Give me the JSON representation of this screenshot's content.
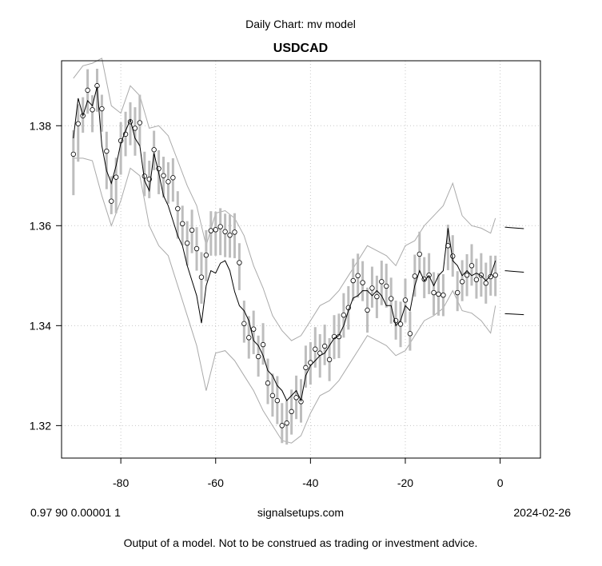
{
  "chart_data": {
    "type": "line",
    "title": "USDCAD",
    "subtitle": "Daily Chart: mv model",
    "xlabel": "",
    "ylabel": "",
    "xlim": [
      -92.5,
      8.5
    ],
    "ylim": [
      1.3135,
      1.393
    ],
    "x_ticks": [
      -80,
      -60,
      -40,
      -20,
      0
    ],
    "x_tick_labels": [
      "-80",
      "-60",
      "-40",
      "-20",
      "0"
    ],
    "y_ticks": [
      1.32,
      1.34,
      1.36,
      1.38
    ],
    "y_tick_labels": [
      "1.32",
      "1.34",
      "1.36",
      "1.38"
    ],
    "grid": true,
    "series": [
      {
        "type": "candles",
        "x": [
          -90,
          -89,
          -88,
          -87,
          -86,
          -85,
          -84,
          -83,
          -82,
          -81,
          -80,
          -79,
          -78,
          -77,
          -76,
          -75,
          -74,
          -73,
          -72,
          -71,
          -70,
          -69,
          -68,
          -67,
          -66,
          -65,
          -64,
          -63,
          -62,
          -61,
          -60,
          -59,
          -58,
          -57,
          -56,
          -55,
          -54,
          -53,
          -52,
          -51,
          -50,
          -49,
          -48,
          -47,
          -46,
          -45,
          -44,
          -43,
          -42,
          -41,
          -40,
          -39,
          -38,
          -37,
          -36,
          -35,
          -34,
          -33,
          -32,
          -31,
          -30,
          -29,
          -28,
          -27,
          -26,
          -25,
          -24,
          -23,
          -22,
          -21,
          -20,
          -19,
          -18,
          -17,
          -16,
          -15,
          -14,
          -13,
          -12,
          -11,
          -10,
          -9,
          -8,
          -7,
          -6,
          -5,
          -4,
          -3,
          -2,
          -1
        ],
        "close": [
          1.3743,
          1.3804,
          1.382,
          1.3871,
          1.3832,
          1.388,
          1.3834,
          1.3749,
          1.3649,
          1.3697,
          1.377,
          1.3783,
          1.3808,
          1.3795,
          1.3806,
          1.3699,
          1.3693,
          1.3752,
          1.3714,
          1.37,
          1.3688,
          1.3696,
          1.3634,
          1.3604,
          1.3565,
          1.3591,
          1.3554,
          1.3497,
          1.3541,
          1.359,
          1.3592,
          1.3598,
          1.3588,
          1.3581,
          1.3587,
          1.3526,
          1.3404,
          1.3376,
          1.3393,
          1.3338,
          1.3362,
          1.3285,
          1.326,
          1.325,
          1.32,
          1.3205,
          1.3228,
          1.3256,
          1.3248,
          1.3316,
          1.3326,
          1.3353,
          1.3345,
          1.3359,
          1.3332,
          1.3378,
          1.3378,
          1.3421,
          1.3436,
          1.349,
          1.35,
          1.3486,
          1.3431,
          1.3475,
          1.3458,
          1.3488,
          1.3479,
          1.3454,
          1.341,
          1.3403,
          1.3451,
          1.3384,
          1.3499,
          1.3543,
          1.3493,
          1.3501,
          1.3466,
          1.3463,
          1.3461,
          1.356,
          1.3539,
          1.3466,
          1.3488,
          1.3501,
          1.352,
          1.3492,
          1.3501,
          1.3485,
          1.3498,
          1.3501
        ],
        "low": [
          1.3661,
          1.3728,
          1.3786,
          1.3824,
          1.3787,
          1.3828,
          1.3788,
          1.3673,
          1.3623,
          1.3625,
          1.3702,
          1.3739,
          1.3761,
          1.374,
          1.376,
          1.3659,
          1.3655,
          1.3711,
          1.3663,
          1.3656,
          1.3644,
          1.3648,
          1.3574,
          1.3561,
          1.352,
          1.3545,
          1.351,
          1.3444,
          1.3489,
          1.354,
          1.354,
          1.3541,
          1.3537,
          1.3536,
          1.3535,
          1.3471,
          1.3366,
          1.3334,
          1.3343,
          1.3298,
          1.3322,
          1.3243,
          1.3218,
          1.3203,
          1.3165,
          1.3162,
          1.3182,
          1.3213,
          1.3206,
          1.3276,
          1.3282,
          1.3316,
          1.3296,
          1.3321,
          1.3289,
          1.3333,
          1.3335,
          1.3376,
          1.3392,
          1.345,
          1.3456,
          1.3449,
          1.3386,
          1.3436,
          1.3415,
          1.3441,
          1.3436,
          1.3404,
          1.3372,
          1.3357,
          1.3406,
          1.335,
          1.3458,
          1.3505,
          1.3455,
          1.3463,
          1.3421,
          1.342,
          1.3419,
          1.3511,
          1.3498,
          1.3429,
          1.3449,
          1.3459,
          1.348,
          1.3454,
          1.3458,
          1.3444,
          1.346,
          1.3459
        ],
        "high": [
          1.3791,
          1.3843,
          1.3857,
          1.3913,
          1.3861,
          1.3914,
          1.3862,
          1.3788,
          1.3699,
          1.3736,
          1.3807,
          1.3828,
          1.3847,
          1.3837,
          1.3862,
          1.3748,
          1.373,
          1.379,
          1.3751,
          1.3738,
          1.3727,
          1.3735,
          1.3669,
          1.364,
          1.3609,
          1.3632,
          1.3597,
          1.3547,
          1.3591,
          1.3629,
          1.3628,
          1.3635,
          1.3624,
          1.3622,
          1.3625,
          1.3565,
          1.345,
          1.3419,
          1.343,
          1.338,
          1.3405,
          1.3334,
          1.3304,
          1.3299,
          1.3245,
          1.325,
          1.3272,
          1.33,
          1.3293,
          1.336,
          1.3367,
          1.3397,
          1.3383,
          1.3402,
          1.3375,
          1.3421,
          1.3424,
          1.3465,
          1.3479,
          1.3534,
          1.3544,
          1.3529,
          1.3476,
          1.3518,
          1.35,
          1.353,
          1.3524,
          1.3496,
          1.345,
          1.3448,
          1.3494,
          1.3428,
          1.3542,
          1.3588,
          1.3537,
          1.3545,
          1.3507,
          1.3505,
          1.3503,
          1.3602,
          1.3581,
          1.3509,
          1.3531,
          1.3543,
          1.3563,
          1.3534,
          1.3545,
          1.3526,
          1.354,
          1.354
        ]
      },
      {
        "type": "line",
        "color": "#000000",
        "x": [
          -90,
          -89,
          -88,
          -87,
          -86,
          -85,
          -84,
          -83,
          -82,
          -81,
          -80,
          -79,
          -78,
          -77,
          -76,
          -75,
          -74,
          -73,
          -72,
          -71,
          -70,
          -69,
          -68,
          -67,
          -66,
          -65,
          -64,
          -63,
          -62,
          -61,
          -60,
          -59,
          -58,
          -57,
          -56,
          -55,
          -54,
          -53,
          -52,
          -51,
          -50,
          -49,
          -48,
          -47,
          -46,
          -45,
          -44,
          -43,
          -42,
          -41,
          -40,
          -39,
          -38,
          -37,
          -36,
          -35,
          -34,
          -33,
          -32,
          -31,
          -30,
          -29,
          -28,
          -27,
          -26,
          -25,
          -24,
          -23,
          -22,
          -21,
          -20,
          -19,
          -18,
          -17,
          -16,
          -15,
          -14,
          -13,
          -12,
          -11,
          -10,
          -9,
          -8,
          -7,
          -6,
          -5,
          -4,
          -3,
          -2,
          -1
        ],
        "y": [
          1.3775,
          1.3855,
          1.382,
          1.385,
          1.384,
          1.3878,
          1.376,
          1.371,
          1.3685,
          1.372,
          1.3765,
          1.379,
          1.3812,
          1.3775,
          1.376,
          1.369,
          1.367,
          1.3745,
          1.3705,
          1.366,
          1.364,
          1.361,
          1.358,
          1.356,
          1.352,
          1.349,
          1.346,
          1.3405,
          1.348,
          1.351,
          1.3505,
          1.3525,
          1.353,
          1.351,
          1.3468,
          1.344,
          1.343,
          1.341,
          1.337,
          1.336,
          1.334,
          1.331,
          1.33,
          1.328,
          1.327,
          1.325,
          1.326,
          1.327,
          1.325,
          1.33,
          1.332,
          1.333,
          1.334,
          1.3345,
          1.336,
          1.3375,
          1.338,
          1.34,
          1.343,
          1.3455,
          1.346,
          1.347,
          1.347,
          1.346,
          1.347,
          1.346,
          1.344,
          1.344,
          1.34,
          1.341,
          1.344,
          1.343,
          1.348,
          1.351,
          1.349,
          1.35,
          1.348,
          1.35,
          1.351,
          1.3595,
          1.353,
          1.352,
          1.35,
          1.351,
          1.35,
          1.3505,
          1.35,
          1.349,
          1.35,
          1.353
        ]
      },
      {
        "type": "line",
        "color": "#aaaaaa",
        "x": [
          -90,
          -88,
          -86,
          -84,
          -82,
          -80,
          -78,
          -76,
          -74,
          -72,
          -70,
          -68,
          -66,
          -64,
          -62,
          -60,
          -58,
          -56,
          -54,
          -52,
          -50,
          -48,
          -46,
          -44,
          -42,
          -40,
          -38,
          -36,
          -34,
          -32,
          -30,
          -28,
          -26,
          -24,
          -22,
          -20,
          -18,
          -16,
          -14,
          -12,
          -10,
          -8,
          -6,
          -4,
          -2,
          -1
        ],
        "y": [
          1.3895,
          1.392,
          1.3925,
          1.3935,
          1.384,
          1.3825,
          1.388,
          1.386,
          1.3795,
          1.38,
          1.378,
          1.373,
          1.368,
          1.364,
          1.356,
          1.3625,
          1.363,
          1.3615,
          1.358,
          1.352,
          1.3475,
          1.342,
          1.339,
          1.337,
          1.338,
          1.341,
          1.344,
          1.345,
          1.347,
          1.35,
          1.353,
          1.356,
          1.355,
          1.354,
          1.352,
          1.356,
          1.357,
          1.36,
          1.362,
          1.364,
          1.3685,
          1.362,
          1.36,
          1.3595,
          1.3585,
          1.3615
        ]
      },
      {
        "type": "line",
        "color": "#aaaaaa",
        "x": [
          -90,
          -88,
          -86,
          -84,
          -82,
          -80,
          -78,
          -76,
          -74,
          -72,
          -70,
          -68,
          -66,
          -64,
          -62,
          -60,
          -58,
          -56,
          -54,
          -52,
          -50,
          -48,
          -46,
          -44,
          -42,
          -40,
          -38,
          -36,
          -34,
          -32,
          -30,
          -28,
          -26,
          -24,
          -22,
          -20,
          -18,
          -16,
          -14,
          -12,
          -10,
          -8,
          -6,
          -4,
          -2,
          -1
        ],
        "y": [
          1.3735,
          1.3735,
          1.373,
          1.366,
          1.36,
          1.365,
          1.3715,
          1.37,
          1.36,
          1.356,
          1.354,
          1.348,
          1.342,
          1.336,
          1.327,
          1.3345,
          1.335,
          1.333,
          1.33,
          1.327,
          1.323,
          1.32,
          1.317,
          1.3165,
          1.318,
          1.3225,
          1.326,
          1.327,
          1.329,
          1.332,
          1.335,
          1.338,
          1.337,
          1.336,
          1.334,
          1.335,
          1.338,
          1.341,
          1.342,
          1.3435,
          1.347,
          1.343,
          1.3425,
          1.341,
          1.3385,
          1.344
        ]
      },
      {
        "type": "forecast",
        "color": "#000000",
        "x": [
          1,
          5
        ],
        "upper": [
          1.3597,
          1.3594
        ],
        "mid": [
          1.351,
          1.3507
        ],
        "lower": [
          1.3424,
          1.3422
        ]
      }
    ]
  },
  "footer": {
    "params": "0.97 90 0.00001 1",
    "site": "signalsetups.com",
    "date": "2024-02-26",
    "disclaimer": "Output of a model.  Not to be construed as trading or investment advice."
  }
}
